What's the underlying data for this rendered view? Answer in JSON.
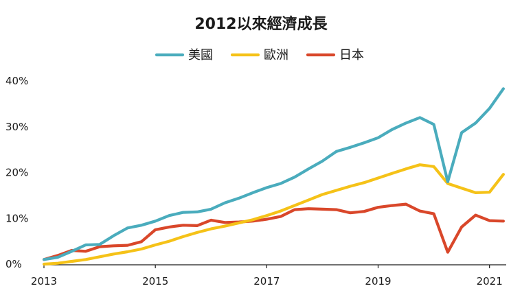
{
  "chart_data": {
    "type": "line",
    "title": "2012以來經濟成長",
    "xlabel": "",
    "ylabel": "",
    "x_tick_labels": [
      "2013",
      "2015",
      "2017",
      "2019",
      "2021"
    ],
    "x_ticks": [
      2013,
      2015,
      2017,
      2019,
      2021
    ],
    "xlim": [
      2013,
      2021.3
    ],
    "y_tick_labels": [
      "0%",
      "10%",
      "20%",
      "30%",
      "40%"
    ],
    "y_ticks": [
      0,
      10,
      20,
      30,
      40
    ],
    "ylim": [
      0,
      40
    ],
    "grid": false,
    "legend_position": "top-center",
    "x": [
      2013.0,
      2013.25,
      2013.5,
      2013.75,
      2014.0,
      2014.25,
      2014.5,
      2014.75,
      2015.0,
      2015.25,
      2015.5,
      2015.75,
      2016.0,
      2016.25,
      2016.5,
      2016.75,
      2017.0,
      2017.25,
      2017.5,
      2017.75,
      2018.0,
      2018.25,
      2018.5,
      2018.75,
      2019.0,
      2019.25,
      2019.5,
      2019.75,
      2020.0,
      2020.25,
      2020.5,
      2020.75,
      2021.0,
      2021.25
    ],
    "series": [
      {
        "name": "美國",
        "color": "#4aacbd",
        "values": [
          1.0,
          1.5,
          2.8,
          4.2,
          4.3,
          6.2,
          7.9,
          8.5,
          9.4,
          10.6,
          11.3,
          11.4,
          12.0,
          13.4,
          14.4,
          15.6,
          16.7,
          17.6,
          19.0,
          20.8,
          22.5,
          24.6,
          25.5,
          26.5,
          27.6,
          29.4,
          30.8,
          32.0,
          30.5,
          18.0,
          28.7,
          30.8,
          34.0,
          38.3
        ]
      },
      {
        "name": "歐洲",
        "color": "#f5c218",
        "values": [
          0.0,
          0.2,
          0.6,
          1.0,
          1.6,
          2.2,
          2.7,
          3.3,
          4.2,
          5.0,
          6.0,
          6.9,
          7.7,
          8.3,
          9.0,
          9.7,
          10.6,
          11.6,
          12.8,
          14.0,
          15.2,
          16.1,
          17.0,
          17.8,
          18.8,
          19.8,
          20.8,
          21.7,
          21.3,
          17.6,
          16.6,
          15.6,
          15.7,
          19.6
        ]
      },
      {
        "name": "日本",
        "color": "#d9472a",
        "values": [
          1.0,
          1.9,
          3.0,
          2.8,
          3.8,
          4.0,
          4.1,
          4.9,
          7.5,
          8.1,
          8.5,
          8.4,
          9.6,
          9.1,
          9.2,
          9.4,
          9.8,
          10.4,
          11.9,
          12.1,
          12.0,
          11.9,
          11.2,
          11.5,
          12.4,
          12.8,
          13.1,
          11.6,
          11.0,
          2.6,
          8.1,
          10.7,
          9.5,
          9.4
        ]
      }
    ]
  }
}
